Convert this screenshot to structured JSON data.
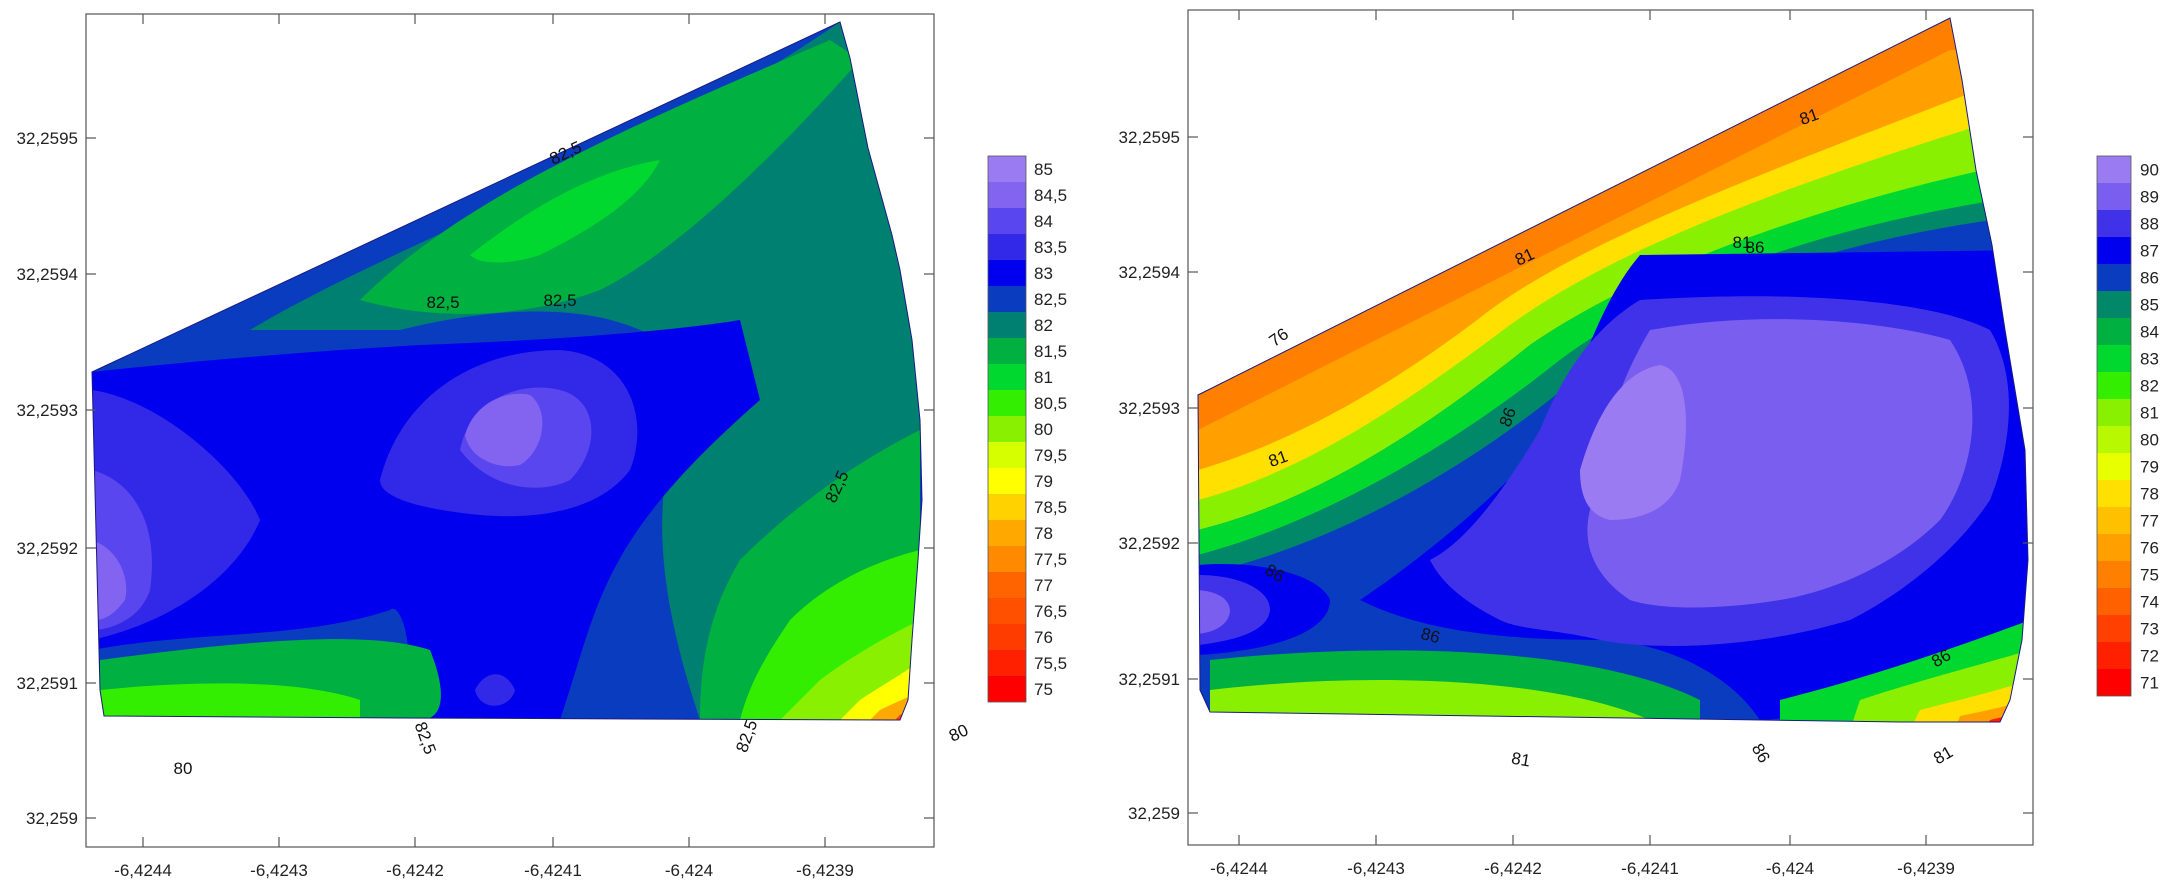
{
  "chart_data": [
    {
      "type": "heatmap",
      "subtype": "filled-contour",
      "x_ticks": [
        "-6,4244",
        "-6,4243",
        "-6,4242",
        "-6,4241",
        "-6,424",
        "-6,4239"
      ],
      "y_ticks": [
        "32,2595",
        "32,2594",
        "32,2593",
        "32,2592",
        "32,2591",
        "32,259"
      ],
      "xlim": [
        -6.42446,
        -6.42385
      ],
      "ylim": [
        32.25898,
        32.25961
      ],
      "legend": {
        "placement": "right",
        "levels": [
          "85",
          "84,5",
          "84",
          "83,5",
          "83",
          "82,5",
          "82",
          "81,5",
          "81",
          "80,5",
          "80",
          "79,5",
          "79",
          "78,5",
          "78",
          "77,5",
          "77",
          "76,5",
          "76",
          "75,5",
          "75"
        ],
        "colors": [
          "#9b7bf2",
          "#8264f0",
          "#5a46ee",
          "#3228e8",
          "#0000ee",
          "#0a3cc0",
          "#008070",
          "#00b040",
          "#00d830",
          "#33ee00",
          "#88f000",
          "#d6ff00",
          "#ffff00",
          "#ffd200",
          "#ffa800",
          "#ff8a00",
          "#ff6400",
          "#ff5000",
          "#ff3c00",
          "#ff2000",
          "#ff0000"
        ]
      },
      "contour_labels": [
        "82,5",
        "82,5",
        "82,5",
        "82,5",
        "82,5",
        "82,5",
        "80",
        "80"
      ],
      "grid": false
    },
    {
      "type": "heatmap",
      "subtype": "filled-contour",
      "x_ticks": [
        "-6,4244",
        "-6,4243",
        "-6,4242",
        "-6,4241",
        "-6,424",
        "-6,4239"
      ],
      "y_ticks": [
        "32,2595",
        "32,2594",
        "32,2593",
        "32,2592",
        "32,2591",
        "32,259"
      ],
      "xlim": [
        -6.42446,
        -6.42385
      ],
      "ylim": [
        32.25898,
        32.25961
      ],
      "legend": {
        "placement": "right",
        "levels": [
          "90",
          "89",
          "88",
          "87",
          "86",
          "85",
          "84",
          "83",
          "82",
          "81",
          "80",
          "79",
          "78",
          "77",
          "76",
          "75",
          "74",
          "73",
          "72",
          "71"
        ],
        "colors": [
          "#9b7bf2",
          "#7a5ef0",
          "#4032e8",
          "#0000ee",
          "#0a3cc0",
          "#008868",
          "#00b040",
          "#00d830",
          "#33ee00",
          "#88f000",
          "#b8f800",
          "#e8ff00",
          "#ffe000",
          "#ffc000",
          "#ffa000",
          "#ff8000",
          "#ff6000",
          "#ff4000",
          "#ff2000",
          "#ff0000"
        ]
      },
      "contour_labels": [
        "76",
        "81",
        "81",
        "81",
        "81",
        "81",
        "81",
        "86",
        "86",
        "86",
        "86",
        "86",
        "86"
      ],
      "grid": false
    }
  ]
}
